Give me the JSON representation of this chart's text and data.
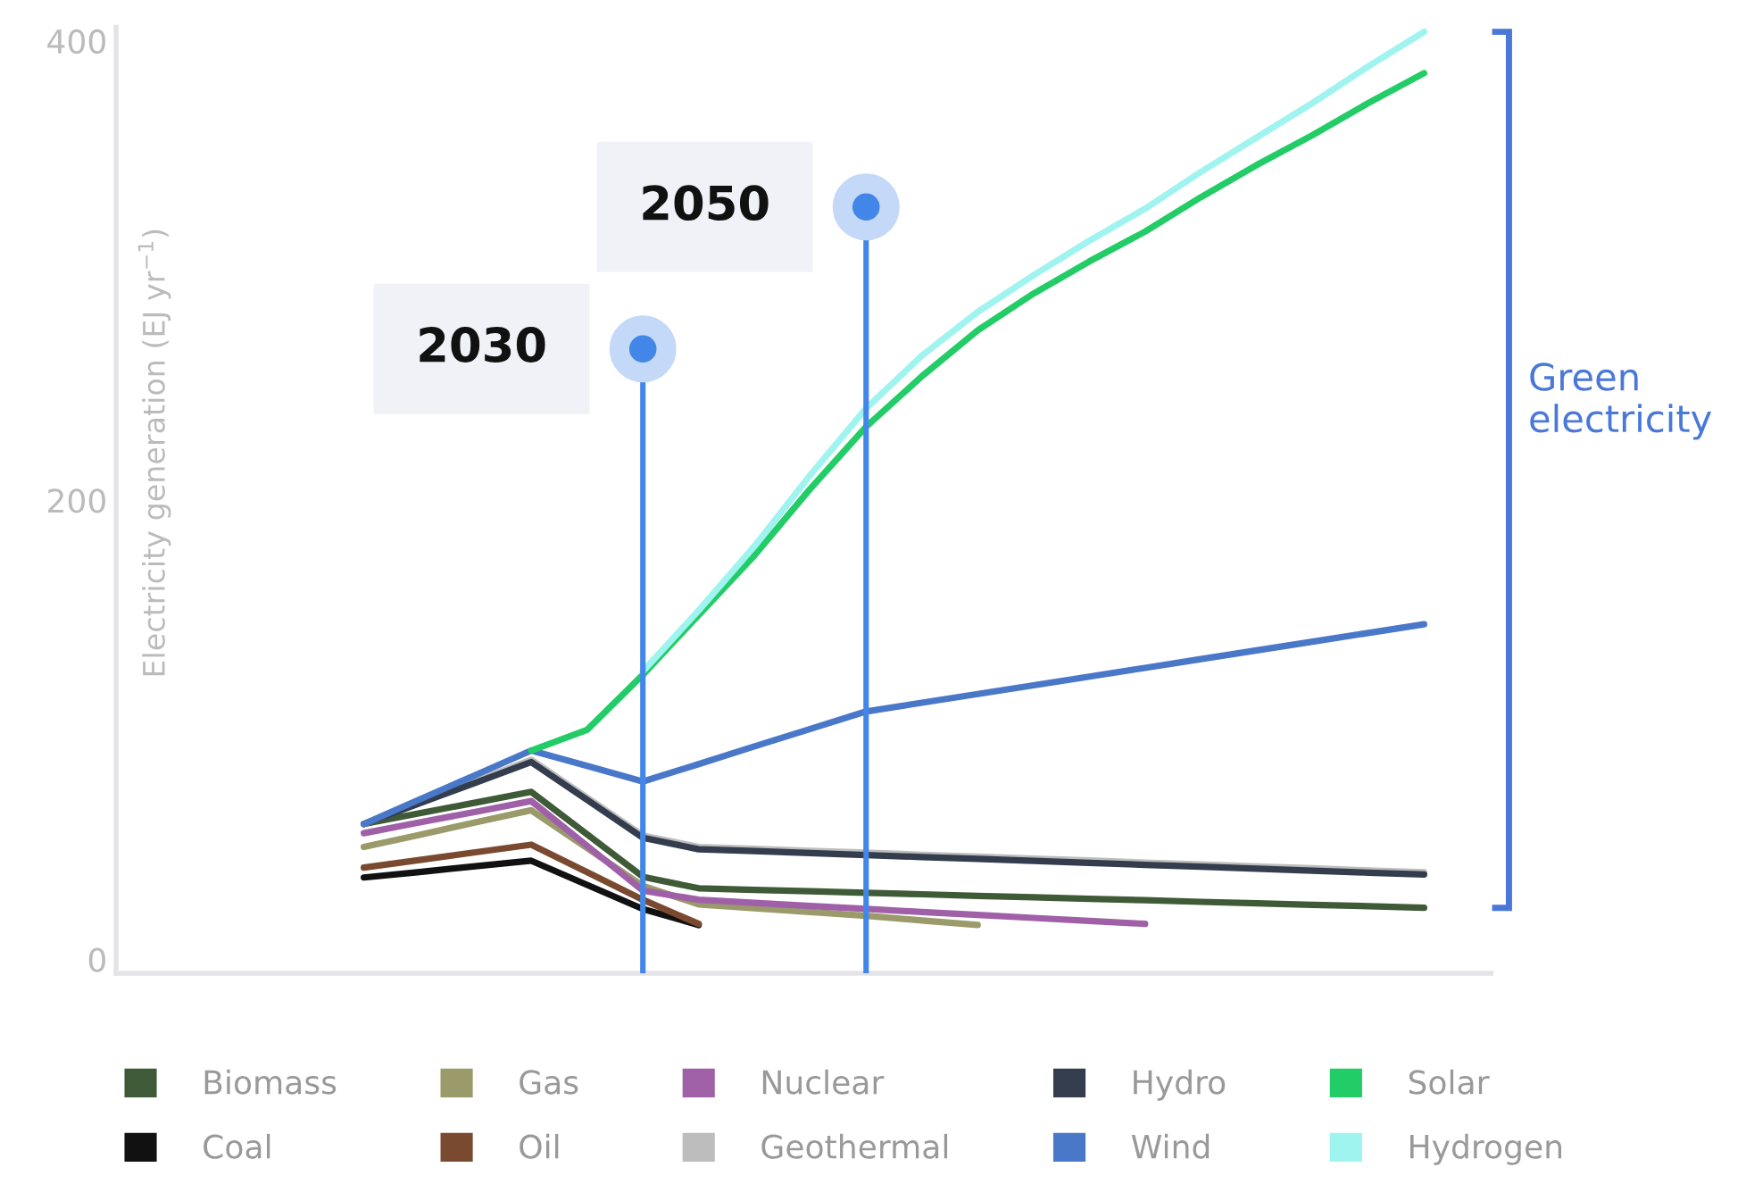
{
  "chart_data": {
    "type": "line",
    "ylabel": "Electricity generation (EJ yr$^{−1}$)",
    "categories": [
      null,
      null,
      null,
      null,
      null,
      null,
      null,
      null,
      null,
      null,
      null,
      null,
      null,
      null,
      null,
      null,
      null,
      null,
      null,
      null
    ],
    "ylim": [
      -6,
      406
    ],
    "yticks": [
      0,
      200,
      400
    ],
    "tick_labels": "y",
    "grid": false,
    "legend": "bottom",
    "series": [
      {
        "name": "Biomass",
        "color": "#3f5a36",
        "values": [
          59,
          63.7,
          68.3,
          73,
          54.5,
          36,
          31,
          30.3,
          29.7,
          29,
          28.4,
          27.7,
          27.1,
          26.4,
          25.8,
          25.1,
          24.5,
          23.8,
          23.2,
          22.5
        ]
      },
      {
        "name": "Coal",
        "color": "#111111",
        "values": [
          35.7,
          38.1,
          40.6,
          43,
          32.5,
          22,
          15,
          null,
          null,
          null,
          null,
          null,
          null,
          null,
          null,
          null,
          null,
          null,
          null,
          null
        ]
      },
      {
        "name": "Gas",
        "color": "#9a9a6a",
        "values": [
          49,
          54.3,
          59.7,
          65,
          48.5,
          32,
          24,
          22.3,
          20.7,
          19,
          17,
          15,
          null,
          null,
          null,
          null,
          null,
          null,
          null,
          null
        ]
      },
      {
        "name": "Oil",
        "color": "#7a4a30",
        "values": [
          40,
          43.3,
          46.7,
          50,
          38,
          26,
          15.5,
          null,
          null,
          null,
          null,
          null,
          null,
          null,
          null,
          null,
          null,
          null,
          null,
          null
        ]
      },
      {
        "name": "Nuclear",
        "color": "#a060a8",
        "values": [
          55,
          59.7,
          64.3,
          69,
          49.5,
          30,
          26,
          24.7,
          23.3,
          22,
          20.7,
          19.4,
          18.1,
          16.8,
          15.5,
          null,
          null,
          null,
          null,
          null
        ]
      },
      {
        "name": "Geothermal",
        "color": "#bdbdbd",
        "values": [
          59,
          68.3,
          77.7,
          87,
          70.5,
          54,
          49,
          48.2,
          47.3,
          46.5,
          45.6,
          44.8,
          43.9,
          43.1,
          42.2,
          41.4,
          40.5,
          39.7,
          38.8,
          38
        ]
      },
      {
        "name": "Hydro",
        "color": "#333d4d",
        "values": [
          59,
          68,
          77,
          86,
          69.5,
          53,
          48,
          47.2,
          46.3,
          45.5,
          44.6,
          43.8,
          42.9,
          42.1,
          41.2,
          40.4,
          39.5,
          38.7,
          37.8,
          37
        ]
      },
      {
        "name": "Wind",
        "color": "#4a78c8",
        "values": [
          59,
          69.7,
          80.3,
          91,
          84.3,
          77.5,
          85.1,
          92.8,
          100.4,
          108,
          111.8,
          115.6,
          119.4,
          123.2,
          127,
          130.8,
          134.6,
          138.4,
          142.2,
          146
        ]
      },
      {
        "name": "Solar",
        "color": "#22cc66",
        "values": [
          null,
          null,
          null,
          91,
          100,
          124,
          150,
          176,
          205,
          232,
          254,
          274,
          290,
          304,
          317,
          332,
          346,
          359,
          373,
          386
        ]
      },
      {
        "name": "Hydrogen",
        "color": "#a0f4f0",
        "values": [
          null,
          null,
          null,
          null,
          null,
          125.5,
          152,
          180,
          211,
          240,
          263,
          282,
          298,
          313,
          327,
          343,
          358,
          373,
          389,
          404
        ]
      }
    ],
    "annotations": [
      "2030",
      "2050",
      "Green electricity"
    ]
  }
}
